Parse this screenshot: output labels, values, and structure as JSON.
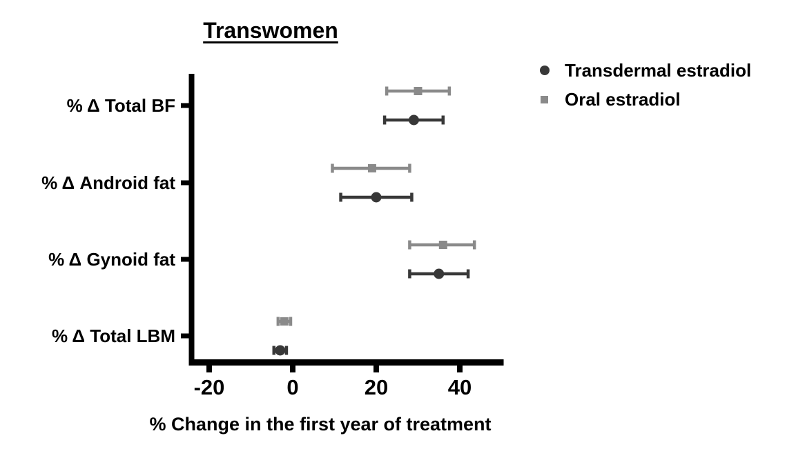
{
  "page": {
    "background": "#ffffff"
  },
  "chart_data": {
    "type": "scatter",
    "title": "Transwomen",
    "xlabel": "% Change in the first year of treatment",
    "ylabel": "",
    "categories": [
      "% Δ Total BF",
      "% Δ Android fat",
      "% Δ Gynoid fat",
      "% Δ Total LBM"
    ],
    "x_tick_labels": [
      "-20",
      "0",
      "20",
      "40"
    ],
    "x_tick_values": [
      -20,
      0,
      20,
      40
    ],
    "xlim": [
      -25,
      50.5
    ],
    "grid": false,
    "legend_position": "top-right",
    "axis_color": "#000000",
    "series": [
      {
        "name": "Transdermal estradiol",
        "marker": "circle",
        "color": "#383838",
        "means": [
          29,
          20,
          35,
          -3
        ],
        "ci_low": [
          22,
          11.5,
          28,
          -4.5
        ],
        "ci_high": [
          36,
          28.5,
          42,
          -1.5
        ]
      },
      {
        "name": "Oral estradiol",
        "marker": "square",
        "color": "#8a8a8a",
        "means": [
          30,
          19,
          36,
          -2
        ],
        "ci_low": [
          22.5,
          9.5,
          28,
          -3.5
        ],
        "ci_high": [
          37.5,
          28,
          43.5,
          -0.5
        ]
      }
    ]
  }
}
